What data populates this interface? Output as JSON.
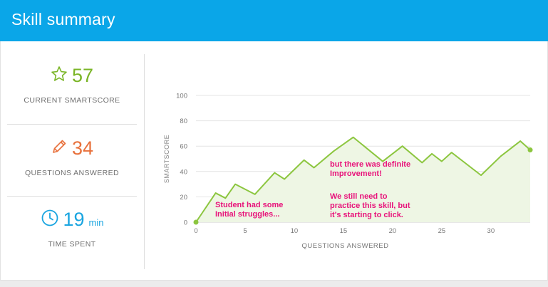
{
  "header": {
    "title": "Skill summary"
  },
  "stats": {
    "smartscore": {
      "value": "57",
      "label": "CURRENT SMARTSCORE",
      "color": "#7ab526",
      "icon": "star-icon"
    },
    "questions": {
      "value": "34",
      "label": "QUESTIONS ANSWERED",
      "color": "#e8713c",
      "icon": "pencil-icon"
    },
    "time": {
      "value": "19",
      "unit": "min",
      "label": "TIME SPENT",
      "color": "#1aa5e0",
      "icon": "clock-icon"
    }
  },
  "annotations": {
    "note1": "Student had some\nInitial struggles...",
    "note2": "but there was definite\nImprovement!",
    "note3": "We still need to\npractice this skill, but\nit's starting to click."
  },
  "chart_data": {
    "type": "line",
    "xlabel": "QUESTIONS ANSWERED",
    "ylabel": "SMARTSCORE",
    "xlim": [
      0,
      34
    ],
    "ylim": [
      0,
      100
    ],
    "xticks": [
      0,
      5,
      10,
      15,
      20,
      25,
      30
    ],
    "yticks": [
      0,
      20,
      40,
      60,
      80,
      100
    ],
    "line_color": "#8cc63f",
    "fill_color": "#eef6e4",
    "x": [
      0,
      2,
      3,
      4,
      6,
      8,
      9,
      11,
      12,
      14,
      16,
      19,
      21,
      23,
      24,
      25,
      26,
      29,
      31,
      33,
      34
    ],
    "y": [
      0,
      23,
      19,
      30,
      22,
      39,
      34,
      49,
      43,
      56,
      67,
      48,
      60,
      47,
      54,
      48,
      55,
      37,
      52,
      64,
      57
    ]
  }
}
